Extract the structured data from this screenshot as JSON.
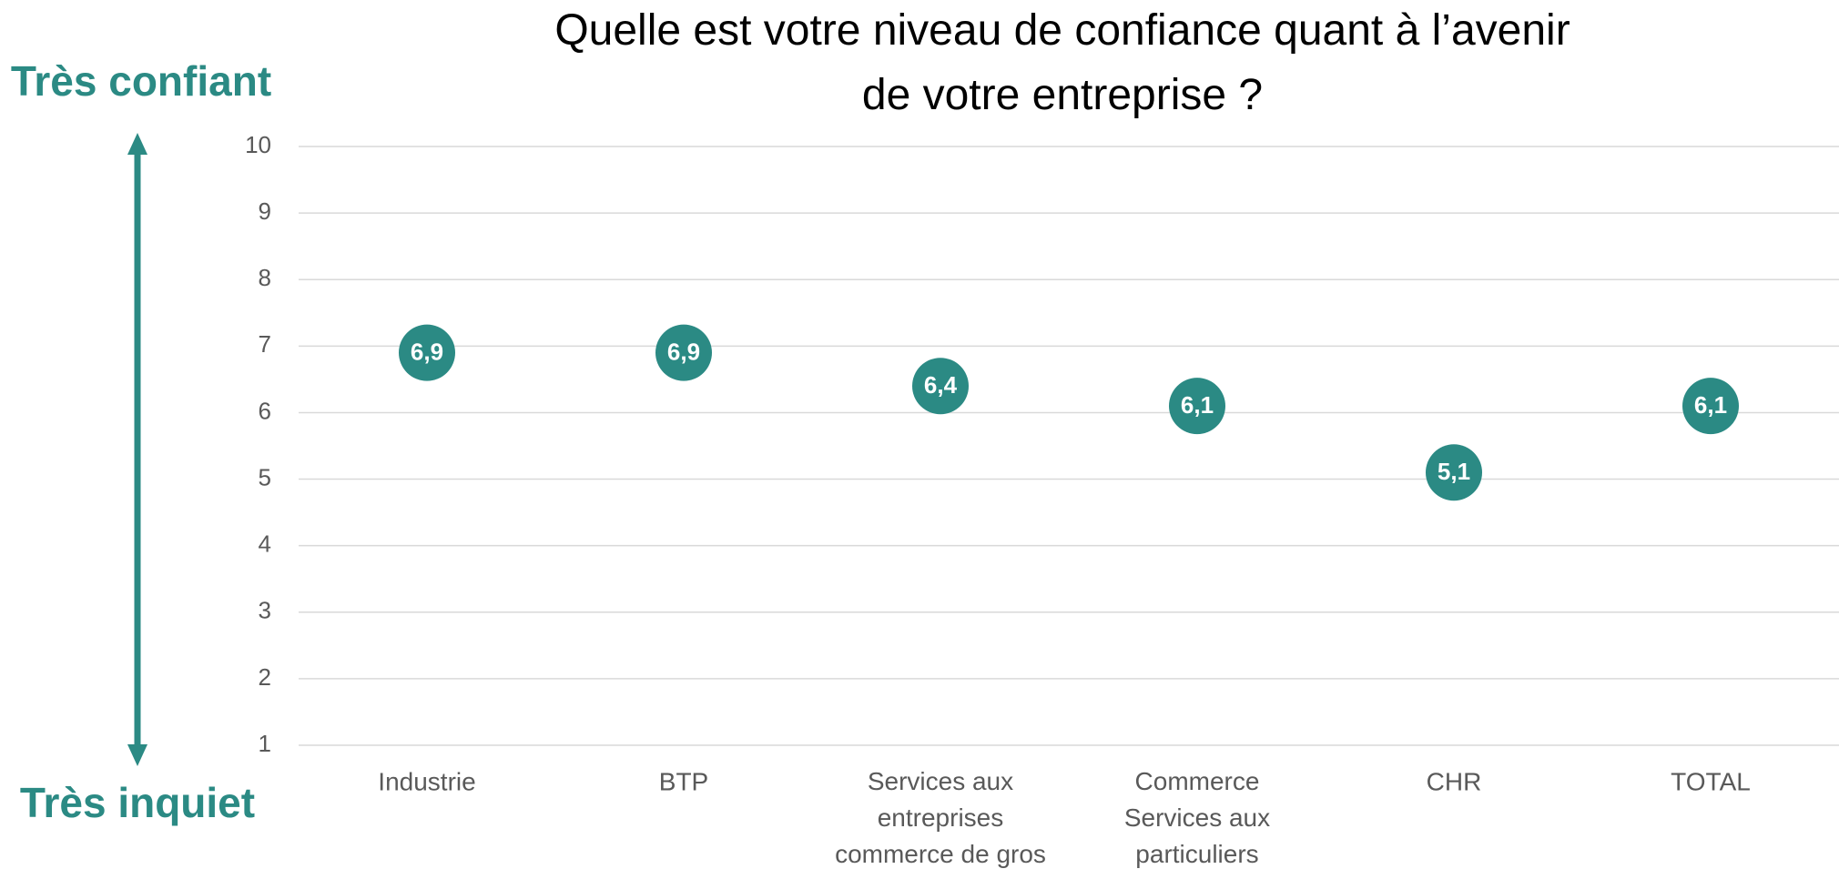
{
  "chart_data": {
    "type": "dot",
    "title": "Quelle est votre niveau de confiance quant à l’avenir\nde votre entreprise ?",
    "annotations": [
      "Très confiant",
      "Très inquiet"
    ],
    "categories": [
      "Industrie",
      "BTP",
      "Services aux\nentreprises\ncommerce de gros",
      "Commerce\nServices aux\nparticuliers",
      "CHR",
      "TOTAL"
    ],
    "values": [
      6.9,
      6.9,
      6.4,
      6.1,
      5.1,
      6.1
    ],
    "value_labels": [
      "6,9",
      "6,9",
      "6,4",
      "6,1",
      "5,1",
      "6,1"
    ],
    "color": "#2b8a84",
    "ylim": [
      1,
      10
    ],
    "yticks": [
      1,
      2,
      3,
      4,
      5,
      6,
      7,
      8,
      9,
      10
    ],
    "grid": true
  }
}
